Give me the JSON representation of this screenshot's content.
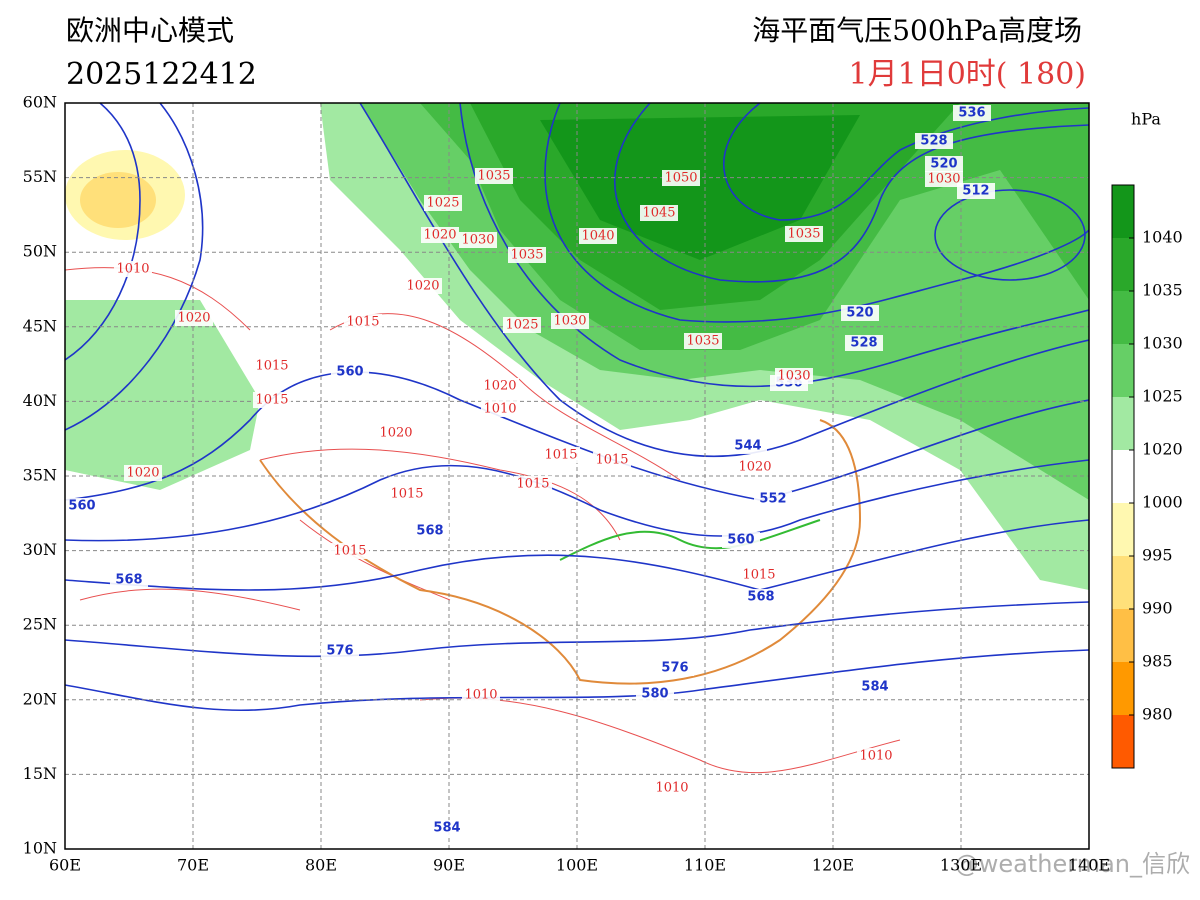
{
  "header": {
    "model": "欧洲中心模式",
    "init_time": "2025122412",
    "title": "海平面气压500hPa高度场",
    "valid_time": "1月1日0时( 180)"
  },
  "map": {
    "lat_labels": [
      "60N",
      "55N",
      "50N",
      "45N",
      "40N",
      "35N",
      "30N",
      "25N",
      "20N",
      "15N",
      "10N"
    ],
    "lon_labels": [
      "60E",
      "70E",
      "80E",
      "90E",
      "100E",
      "110E",
      "120E",
      "130E",
      "140E"
    ]
  },
  "colorbar": {
    "unit": "hPa",
    "ticks": [
      1040,
      1035,
      1030,
      1025,
      1020,
      1000,
      995,
      990,
      985,
      980
    ],
    "colors": [
      "#13961a",
      "#2aa82a",
      "#44bb44",
      "#66cf66",
      "#a2e9a2",
      "#ffffff",
      "#fff8b0",
      "#ffe07a",
      "#ffbf45",
      "#ff9900",
      "#ff5a00"
    ]
  },
  "height_labels": [
    "536",
    "528",
    "520",
    "512",
    "520",
    "528",
    "536",
    "544",
    "552",
    "560",
    "568",
    "576",
    "580",
    "584",
    "584",
    "560",
    "568",
    "568",
    "576",
    "560"
  ],
  "pressure_labels": [
    "1035",
    "1025",
    "1020",
    "1030",
    "1035",
    "1040",
    "1045",
    "1050",
    "1035",
    "1030",
    "1020",
    "1015",
    "1025",
    "1030",
    "1035",
    "1030",
    "1020",
    "1010",
    "1015",
    "1015",
    "1020",
    "1015",
    "1015",
    "1015",
    "1015",
    "1015",
    "1020",
    "1015",
    "1010",
    "1020",
    "1020",
    "1010",
    "1010",
    "1010"
  ],
  "watermark": "@weatherman_信欣"
}
